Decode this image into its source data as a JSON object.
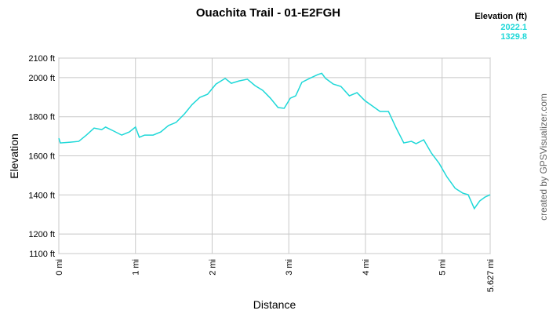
{
  "chart_data": {
    "type": "line",
    "title": "Ouachita Trail - 01-E2FGH",
    "x_label": "Distance",
    "y_label": "Elevation",
    "credit": "created by GPSVisualizer.com",
    "legend_title": "Elevation (ft)",
    "legend_stats": [
      2022.1,
      1329.8
    ],
    "grid": true,
    "xlim": [
      0,
      5.627
    ],
    "ylim": [
      1100,
      2100
    ],
    "xticks": [
      {
        "value": 0,
        "label": "0 mi"
      },
      {
        "value": 1,
        "label": "1 mi"
      },
      {
        "value": 2,
        "label": "2 mi"
      },
      {
        "value": 3,
        "label": "3 mi"
      },
      {
        "value": 4,
        "label": "4 mi"
      },
      {
        "value": 5,
        "label": "5 mi"
      },
      {
        "value": 5.627,
        "label": "5.627 mi"
      }
    ],
    "yticks": [
      {
        "value": 1100,
        "label": "1100 ft"
      },
      {
        "value": 1200,
        "label": "1200 ft"
      },
      {
        "value": 1400,
        "label": "1400 ft"
      },
      {
        "value": 1600,
        "label": "1600 ft"
      },
      {
        "value": 1800,
        "label": "1800 ft"
      },
      {
        "value": 2000,
        "label": "2000 ft"
      },
      {
        "value": 2100,
        "label": "2100 ft"
      }
    ],
    "x": [
      0,
      0.02,
      0.15,
      0.26,
      0.36,
      0.46,
      0.56,
      0.61,
      0.72,
      0.82,
      0.92,
      1.0,
      1.05,
      1.12,
      1.23,
      1.33,
      1.43,
      1.53,
      1.64,
      1.74,
      1.84,
      1.94,
      2.05,
      2.17,
      2.25,
      2.35,
      2.46,
      2.56,
      2.66,
      2.76,
      2.86,
      2.94,
      3.02,
      3.09,
      3.17,
      3.27,
      3.38,
      3.43,
      3.48,
      3.58,
      3.68,
      3.79,
      3.89,
      3.99,
      4.09,
      4.19,
      4.3,
      4.4,
      4.5,
      4.6,
      4.66,
      4.76,
      4.86,
      4.96,
      5.06,
      5.17,
      5.27,
      5.34,
      5.42,
      5.49,
      5.56,
      5.627
    ],
    "series": [
      {
        "name": "Elevation (ft)",
        "color": "#1ed8d8",
        "values": [
          1690,
          1666,
          1670,
          1674,
          1706,
          1742,
          1734,
          1747,
          1726,
          1706,
          1722,
          1747,
          1695,
          1706,
          1706,
          1722,
          1755,
          1771,
          1815,
          1863,
          1899,
          1915,
          1967,
          1996,
          1971,
          1983,
          1992,
          1959,
          1935,
          1895,
          1847,
          1843,
          1895,
          1907,
          1976,
          1996,
          2016,
          2022,
          1996,
          1967,
          1955,
          1907,
          1923,
          1883,
          1855,
          1827,
          1827,
          1743,
          1666,
          1674,
          1662,
          1682,
          1614,
          1562,
          1494,
          1434,
          1409,
          1401,
          1330,
          1369,
          1389,
          1401
        ]
      }
    ]
  }
}
